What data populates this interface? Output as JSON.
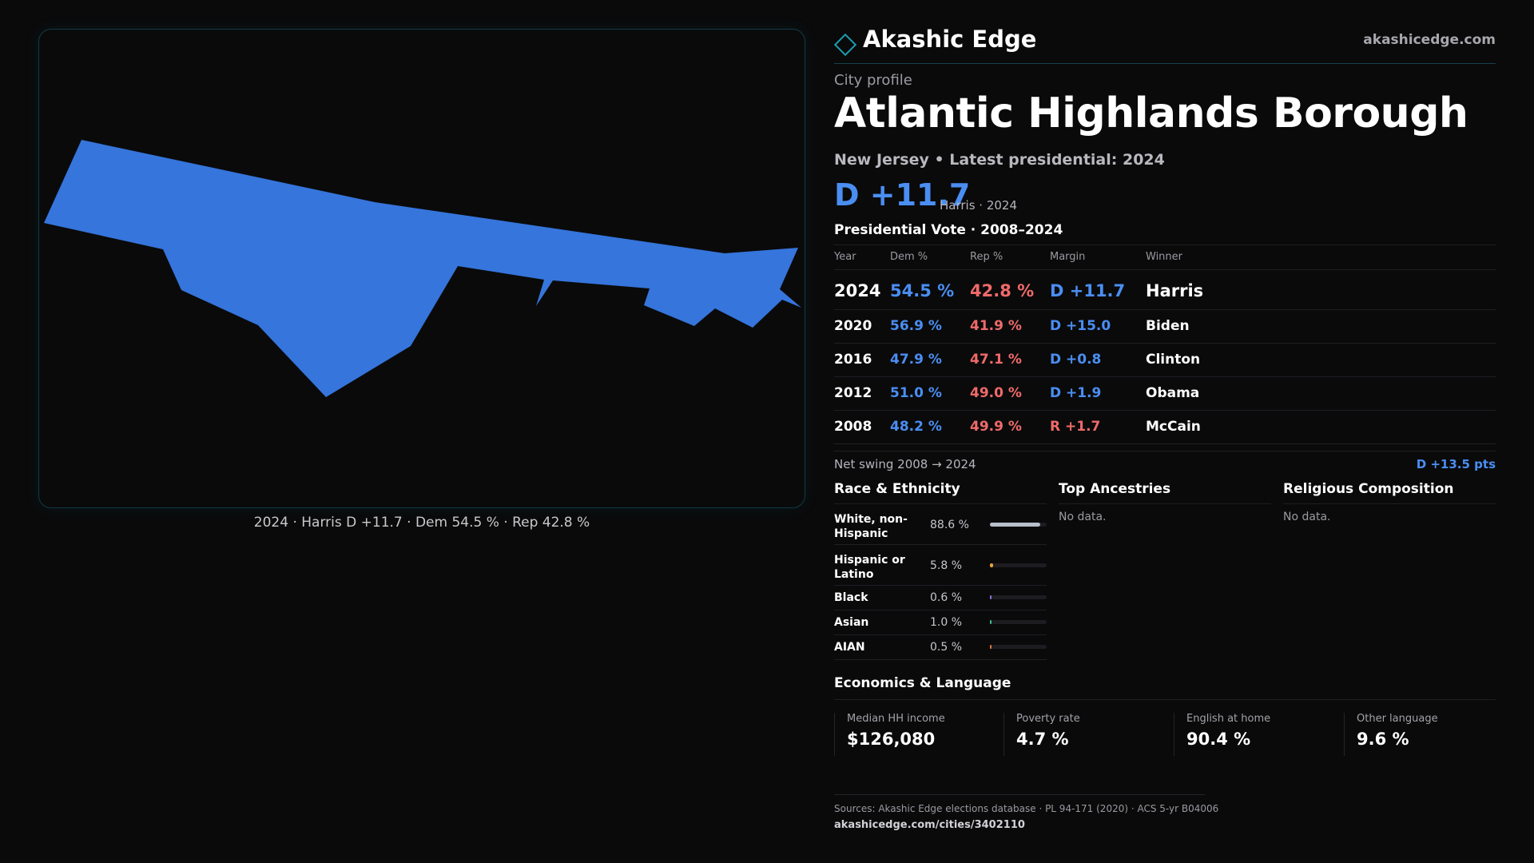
{
  "brand": {
    "name": "Akashic Edge",
    "site": "akashicedge.com",
    "icon": "diamond-logo-icon",
    "accent": "#1aa0b0"
  },
  "profile": {
    "kicker": "City profile",
    "title": "Atlantic Highlands Borough",
    "subtitle": "New Jersey • Latest presidential: 2024",
    "headline_margin": "D +11.7",
    "headline_note": "Harris · 2024"
  },
  "map": {
    "caption": "2024 · Harris D +11.7 · Dem 54.5 % · Rep 42.8 %",
    "fill_color": "#3575dc"
  },
  "votes": {
    "title": "Presidential Vote · 2008–2024",
    "headers": {
      "year": "Year",
      "dem": "Dem %",
      "rep": "Rep %",
      "margin": "Margin",
      "winner": "Winner"
    },
    "rows": [
      {
        "year": "2024",
        "dem": "54.5 %",
        "rep": "42.8 %",
        "margin": "D +11.7",
        "party": "D",
        "winner": "Harris"
      },
      {
        "year": "2020",
        "dem": "56.9 %",
        "rep": "41.9 %",
        "margin": "D +15.0",
        "party": "D",
        "winner": "Biden"
      },
      {
        "year": "2016",
        "dem": "47.9 %",
        "rep": "47.1 %",
        "margin": "D +0.8",
        "party": "D",
        "winner": "Clinton"
      },
      {
        "year": "2012",
        "dem": "51.0 %",
        "rep": "49.0 %",
        "margin": "D +1.9",
        "party": "D",
        "winner": "Obama"
      },
      {
        "year": "2008",
        "dem": "48.2 %",
        "rep": "49.9 %",
        "margin": "R +1.7",
        "party": "R",
        "winner": "McCain"
      }
    ],
    "swing_label": "Net swing 2008 → 2024",
    "swing_value": "D +13.5 pts"
  },
  "race": {
    "title": "Race & Ethnicity",
    "rows": [
      {
        "label": "White, non-Hispanic",
        "value": "88.6 %",
        "fraction": 0.886,
        "color": "#b8bfca"
      },
      {
        "label": "Hispanic or Latino",
        "value": "5.8 %",
        "fraction": 0.058,
        "color": "#e6a23c"
      },
      {
        "label": "Black",
        "value": "0.6 %",
        "fraction": 0.006,
        "color": "#8c6fd6"
      },
      {
        "label": "Asian",
        "value": "1.0 %",
        "fraction": 0.01,
        "color": "#3dbb8a"
      },
      {
        "label": "AIAN",
        "value": "0.5 %",
        "fraction": 0.005,
        "color": "#d9783b"
      }
    ]
  },
  "ancestries": {
    "title": "Top Ancestries",
    "empty": "No data."
  },
  "religion": {
    "title": "Religious Composition",
    "empty": "No data."
  },
  "economics": {
    "title": "Economics & Language",
    "stats": [
      {
        "label": "Median HH income",
        "value": "$126,080"
      },
      {
        "label": "Poverty rate",
        "value": "4.7 %"
      },
      {
        "label": "English at home",
        "value": "90.4 %"
      },
      {
        "label": "Other language",
        "value": "9.6 %"
      }
    ]
  },
  "footer": {
    "sources": "Sources: Akashic Edge elections database · PL 94-171 (2020) · ACS 5-yr B04006",
    "url": "akashicedge.com/cities/3402110"
  },
  "colors": {
    "dem": "#4a8ef2",
    "rep": "#f06a6a"
  }
}
